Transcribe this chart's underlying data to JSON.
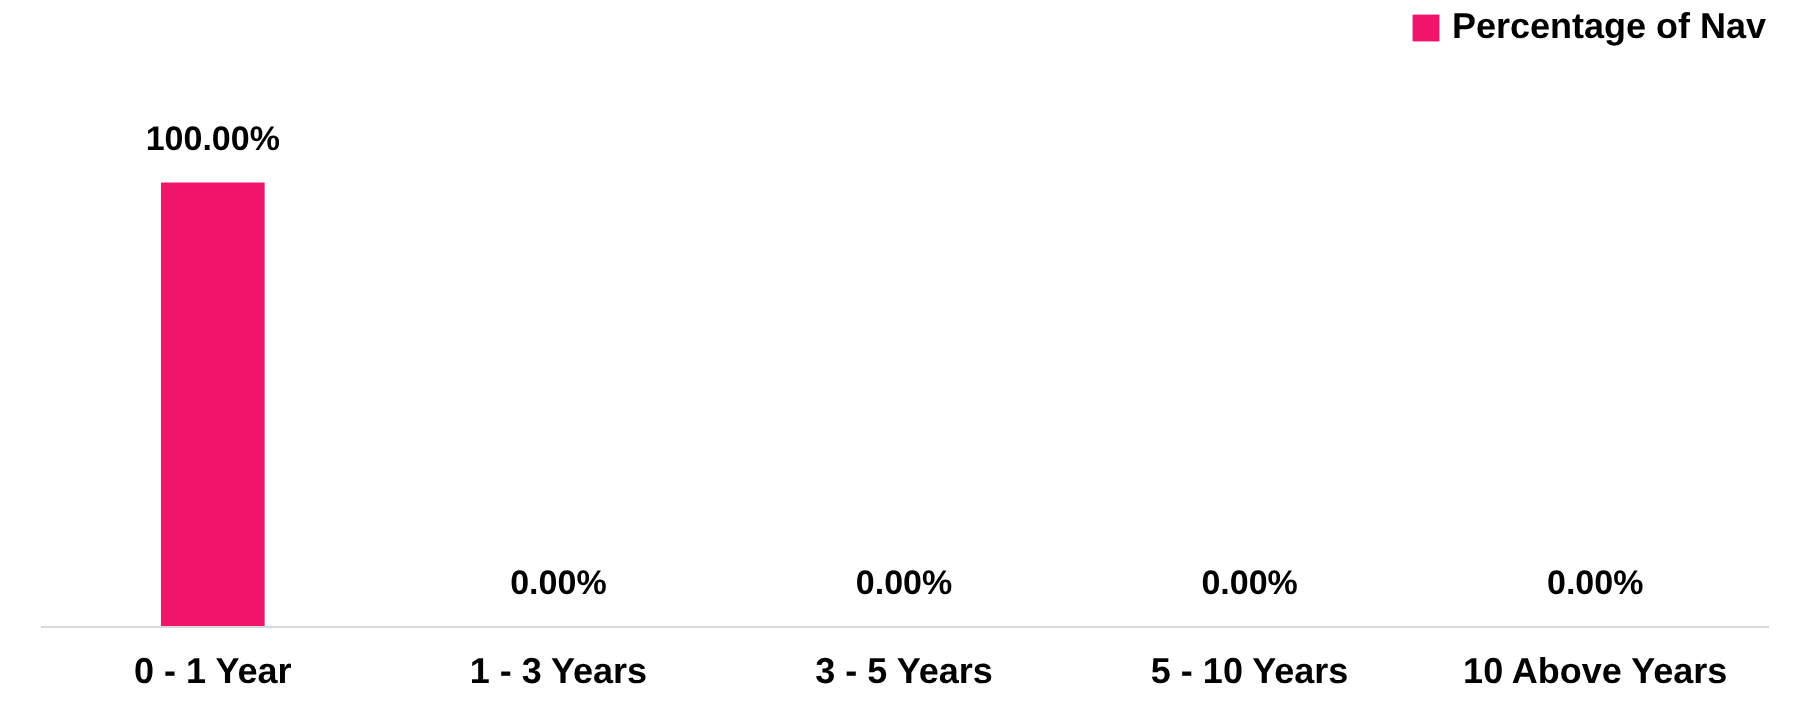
{
  "chart_data": {
    "type": "bar",
    "categories": [
      "0 - 1 Year",
      "1 - 3 Years",
      "3 - 5 Years",
      "5 - 10 Years",
      "10 Above Years"
    ],
    "series": [
      {
        "name": "Percentage of Nav",
        "color": "#f0146a",
        "values": [
          100,
          0,
          0,
          0,
          0
        ],
        "value_labels": [
          "100.00%",
          "0.00%",
          "0.00%",
          "0.00%",
          "0.00%"
        ]
      }
    ],
    "legend": "top right",
    "grid": false
  }
}
